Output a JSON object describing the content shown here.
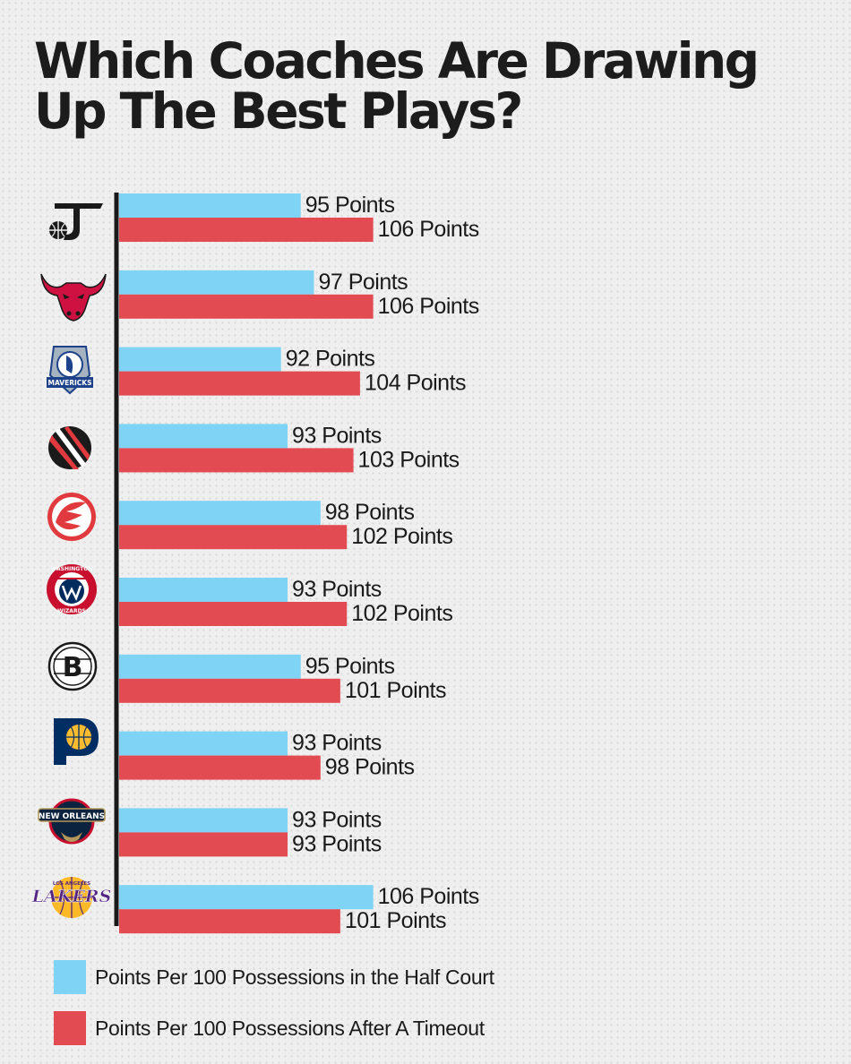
{
  "title": "Which Coaches Are Drawing Up The Best Plays?",
  "colors": {
    "half_court": "#7fd3f5",
    "after_timeout": "#e34b53",
    "axis": "#1a1a1a"
  },
  "chart_data": {
    "type": "bar",
    "orientation": "horizontal",
    "title": "Which Coaches Are Drawing Up The Best Plays?",
    "xlabel": "",
    "ylabel": "",
    "xlim": [
      70,
      130
    ],
    "grid": false,
    "legend_position": "bottom-left",
    "categories": [
      "jazz-logo",
      "bulls-logo",
      "mavericks-logo",
      "trail-blazers-logo",
      "hawks-logo",
      "wizards-logo",
      "nets-logo",
      "pacers-logo",
      "pelicans-logo",
      "lakers-logo"
    ],
    "series": [
      {
        "name": "Points Per 100 Possessions in the Half Court",
        "values": [
          95,
          97,
          92,
          93,
          98,
          93,
          95,
          93,
          93,
          106
        ],
        "labels": [
          "95 Points",
          "97 Points",
          "92 Points",
          "93 Points",
          "98 Points",
          "93 Points",
          "95 Points",
          "93 Points",
          "93 Points",
          "106 Points"
        ]
      },
      {
        "name": "Points Per 100 Possessions After A Timeout",
        "values": [
          106,
          106,
          104,
          103,
          102,
          102,
          101,
          98,
          93,
          101
        ],
        "labels": [
          "106 Points",
          "106 Points",
          "104 Points",
          "103 Points",
          "102 Points",
          "102 Points",
          "101 Points",
          "98 Points",
          "93 Points",
          "101 Points"
        ]
      }
    ]
  },
  "logo_text": {
    "mavericks": "MAVERICKS",
    "wizards_top": "WASHINGTON",
    "wizards_bottom": "WIZARDS",
    "nets": "B",
    "pelicans": "NEW ORLEANS",
    "lakers_top": "LOS ANGELES",
    "lakers": "LAKERS"
  },
  "legend": [
    {
      "label": "Points Per 100 Possessions in the Half Court",
      "color": "#7fd3f5"
    },
    {
      "label": "Points Per 100 Possessions After A Timeout",
      "color": "#e34b53"
    }
  ]
}
